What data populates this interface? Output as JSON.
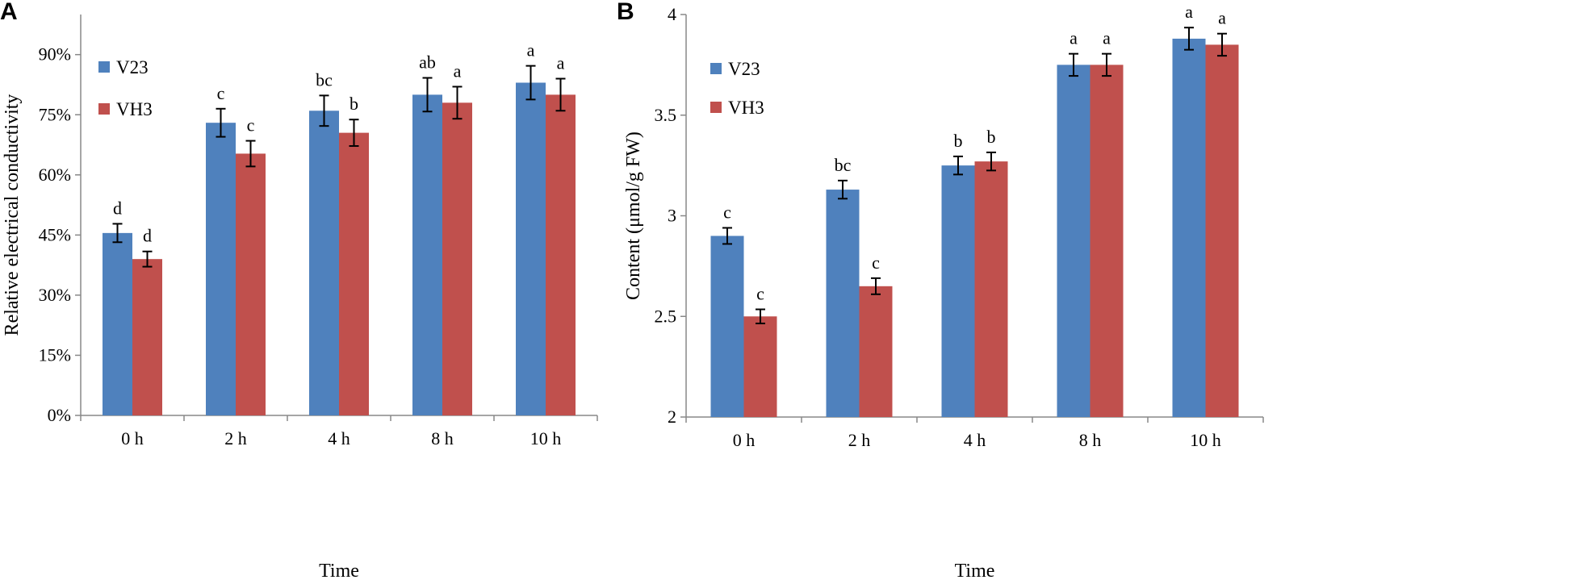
{
  "colors": {
    "v23": "#4f81bd",
    "vh3": "#c0504d",
    "axis": "#888888"
  },
  "chart_data": [
    {
      "type": "bar",
      "panel_label": "A",
      "categories": [
        "0 h",
        "2 h",
        "4 h",
        "8 h",
        "10 h"
      ],
      "xlabel": "Time",
      "ylabel": "Relative electrical conductivity",
      "ylim": [
        0,
        1.0
      ],
      "yticks": [
        0,
        0.15,
        0.3,
        0.45,
        0.6,
        0.75,
        0.9
      ],
      "ytick_labels": [
        "0%",
        "15%",
        "30%",
        "45%",
        "60%",
        "75%",
        "90%"
      ],
      "legend": [
        "V23",
        "VH3"
      ],
      "series": [
        {
          "name": "V23",
          "values": [
            0.455,
            0.73,
            0.76,
            0.8,
            0.83
          ],
          "errors": [
            0.023,
            0.035,
            0.038,
            0.042,
            0.042
          ],
          "letters": [
            "d",
            "c",
            "bc",
            "ab",
            "a"
          ]
        },
        {
          "name": "VH3",
          "values": [
            0.39,
            0.653,
            0.705,
            0.78,
            0.8
          ],
          "errors": [
            0.019,
            0.032,
            0.033,
            0.04,
            0.04
          ],
          "letters": [
            "d",
            "c",
            "b",
            "a",
            "a"
          ]
        }
      ]
    },
    {
      "type": "bar",
      "panel_label": "B",
      "categories": [
        "0 h",
        "2 h",
        "4 h",
        "8 h",
        "10 h"
      ],
      "xlabel": "Time",
      "ylabel": "Content (μmol/g FW)",
      "ylim": [
        2,
        4
      ],
      "yticks": [
        2,
        2.5,
        3,
        3.5,
        4
      ],
      "ytick_labels": [
        "2",
        "2.5",
        "3",
        "3.5",
        "4"
      ],
      "legend": [
        "V23",
        "VH3"
      ],
      "series": [
        {
          "name": "V23",
          "values": [
            2.9,
            3.13,
            3.25,
            3.75,
            3.88
          ],
          "errors": [
            0.04,
            0.045,
            0.045,
            0.055,
            0.055
          ],
          "letters": [
            "c",
            "bc",
            "b",
            "a",
            "a"
          ]
        },
        {
          "name": "VH3",
          "values": [
            2.5,
            2.65,
            3.27,
            3.75,
            3.85
          ],
          "errors": [
            0.035,
            0.04,
            0.045,
            0.055,
            0.055
          ],
          "letters": [
            "c",
            "c",
            "b",
            "a",
            "a"
          ]
        }
      ]
    }
  ]
}
